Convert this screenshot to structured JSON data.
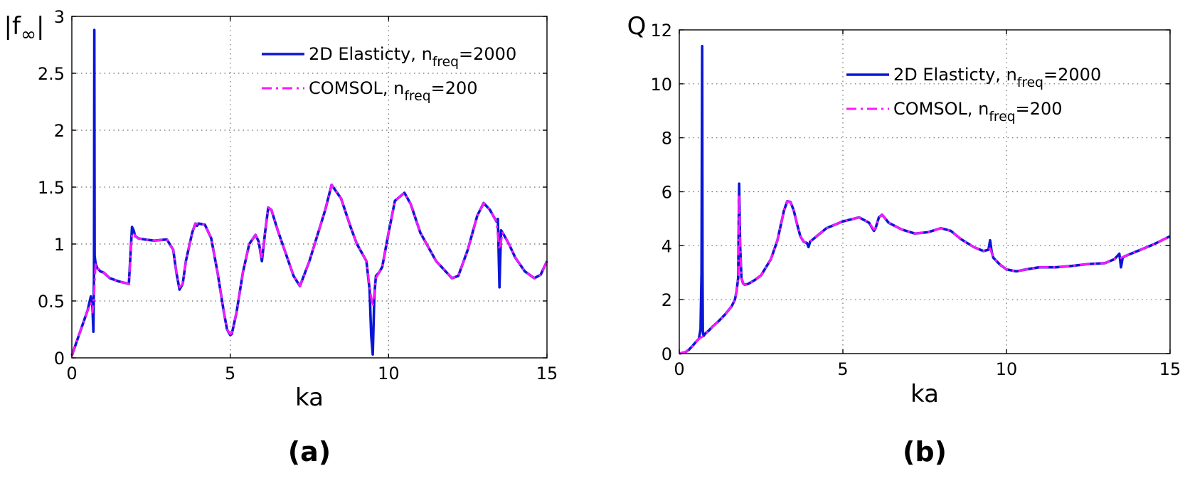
{
  "colors": {
    "series1": "#0a16d6",
    "series2": "#ff17ff",
    "axis": "#000000",
    "grid": "#6b6b6b"
  },
  "chart_data": [
    {
      "type": "line",
      "caption": "(a)",
      "ylabel_base": "|f",
      "ylabel_sub": "∞",
      "ylabel_end": "|",
      "xlabel": "ka",
      "xlim": [
        0,
        15
      ],
      "ylim": [
        0,
        3
      ],
      "xticks": [
        0,
        5,
        10,
        15
      ],
      "yticks": [
        0,
        0.5,
        1,
        1.5,
        2,
        2.5,
        3
      ],
      "xtick_labels": [
        "0",
        "5",
        "10",
        "15"
      ],
      "ytick_labels": [
        "0",
        "0.5",
        "1",
        "1.5",
        "2",
        "2.5",
        "3"
      ],
      "grid": true,
      "legend_position": "top-right",
      "series": [
        {
          "name": "2D Elasticty, n_freq=2000",
          "legend_base": "2D Elasticty, n",
          "legend_sub": "freq",
          "legend_end": "=2000",
          "style": "solid",
          "x": [
            0,
            0.1,
            0.2,
            0.3,
            0.4,
            0.5,
            0.55,
            0.6,
            0.65,
            0.68,
            0.7,
            0.71,
            0.72,
            0.74,
            0.76,
            0.8,
            0.9,
            1.0,
            1.2,
            1.5,
            1.8,
            1.85,
            1.9,
            1.95,
            2.0,
            2.1,
            2.3,
            2.6,
            3.0,
            3.2,
            3.3,
            3.4,
            3.5,
            3.6,
            3.8,
            3.9,
            3.95,
            4.0,
            4.2,
            4.4,
            4.6,
            4.8,
            4.9,
            5.0,
            5.05,
            5.2,
            5.4,
            5.6,
            5.8,
            5.9,
            6.0,
            6.1,
            6.2,
            6.3,
            6.5,
            7.0,
            7.2,
            7.5,
            8.0,
            8.2,
            8.5,
            8.8,
            9.0,
            9.2,
            9.3,
            9.4,
            9.45,
            9.5,
            9.55,
            9.6,
            9.7,
            9.8,
            10.0,
            10.2,
            10.5,
            10.7,
            11.0,
            11.5,
            12.0,
            12.2,
            12.5,
            12.8,
            13.0,
            13.2,
            13.4,
            13.45,
            13.5,
            13.55,
            13.6,
            13.8,
            14.0,
            14.3,
            14.6,
            14.8,
            15.0
          ],
          "y": [
            0.02,
            0.1,
            0.18,
            0.26,
            0.34,
            0.42,
            0.48,
            0.54,
            0.45,
            0.23,
            0.75,
            2.88,
            0.9,
            0.85,
            0.82,
            0.79,
            0.76,
            0.75,
            0.7,
            0.67,
            0.65,
            0.9,
            1.15,
            1.12,
            1.07,
            1.05,
            1.04,
            1.03,
            1.04,
            0.95,
            0.75,
            0.6,
            0.65,
            0.85,
            1.1,
            1.18,
            1.16,
            1.18,
            1.17,
            1.05,
            0.75,
            0.4,
            0.25,
            0.2,
            0.21,
            0.4,
            0.75,
            1.0,
            1.08,
            1.02,
            0.85,
            1.1,
            1.32,
            1.3,
            1.12,
            0.72,
            0.63,
            0.85,
            1.3,
            1.52,
            1.4,
            1.15,
            1.0,
            0.9,
            0.85,
            0.6,
            0.2,
            0.03,
            0.55,
            0.72,
            0.75,
            0.8,
            1.1,
            1.38,
            1.45,
            1.35,
            1.1,
            0.85,
            0.7,
            0.72,
            0.95,
            1.25,
            1.36,
            1.3,
            1.2,
            1.22,
            0.62,
            1.12,
            1.1,
            1.0,
            0.88,
            0.76,
            0.7,
            0.73,
            0.85
          ]
        },
        {
          "name": "COMSOL, n_freq=200",
          "legend_base": "COMSOL, n",
          "legend_sub": "freq",
          "legend_end": "=200",
          "style": "dashdot",
          "x": [
            0,
            0.1,
            0.2,
            0.3,
            0.4,
            0.5,
            0.6,
            0.65,
            0.7,
            0.75,
            0.8,
            0.9,
            1.0,
            1.2,
            1.5,
            1.8,
            1.85,
            1.9,
            1.95,
            2.0,
            2.1,
            2.3,
            2.6,
            3.0,
            3.2,
            3.3,
            3.4,
            3.5,
            3.6,
            3.8,
            3.9,
            4.0,
            4.2,
            4.4,
            4.6,
            4.8,
            4.9,
            5.0,
            5.05,
            5.2,
            5.4,
            5.6,
            5.8,
            5.9,
            6.0,
            6.1,
            6.2,
            6.3,
            6.5,
            7.0,
            7.2,
            7.5,
            8.0,
            8.2,
            8.5,
            8.8,
            9.0,
            9.2,
            9.3,
            9.4,
            9.5,
            9.6,
            9.7,
            9.8,
            10.0,
            10.2,
            10.5,
            10.7,
            11.0,
            11.5,
            12.0,
            12.2,
            12.5,
            12.8,
            13.0,
            13.2,
            13.4,
            13.5,
            13.6,
            13.8,
            14.0,
            14.3,
            14.6,
            14.8,
            15.0
          ],
          "y": [
            0.02,
            0.1,
            0.18,
            0.26,
            0.34,
            0.42,
            0.48,
            0.4,
            0.55,
            0.82,
            0.79,
            0.76,
            0.75,
            0.7,
            0.67,
            0.65,
            0.88,
            1.08,
            1.1,
            1.07,
            1.05,
            1.04,
            1.03,
            1.04,
            0.95,
            0.75,
            0.62,
            0.65,
            0.85,
            1.1,
            1.18,
            1.18,
            1.17,
            1.05,
            0.75,
            0.4,
            0.25,
            0.21,
            0.22,
            0.4,
            0.75,
            1.0,
            1.08,
            1.02,
            0.87,
            1.1,
            1.32,
            1.3,
            1.12,
            0.72,
            0.63,
            0.85,
            1.3,
            1.52,
            1.4,
            1.15,
            1.0,
            0.9,
            0.85,
            0.62,
            0.45,
            0.7,
            0.75,
            0.8,
            1.1,
            1.38,
            1.45,
            1.35,
            1.1,
            0.85,
            0.7,
            0.72,
            0.95,
            1.25,
            1.36,
            1.3,
            1.2,
            0.95,
            1.1,
            1.0,
            0.88,
            0.76,
            0.7,
            0.73,
            0.85
          ]
        }
      ]
    },
    {
      "type": "line",
      "caption": "(b)",
      "ylabel_base": "Q",
      "ylabel_sub": "",
      "ylabel_end": "",
      "xlabel": "ka",
      "xlim": [
        0,
        15
      ],
      "ylim": [
        0,
        12
      ],
      "xticks": [
        0,
        5,
        10,
        15
      ],
      "yticks": [
        0,
        2,
        4,
        6,
        8,
        10,
        12
      ],
      "xtick_labels": [
        "0",
        "5",
        "10",
        "15"
      ],
      "ytick_labels": [
        "0",
        "2",
        "4",
        "6",
        "8",
        "10",
        "12"
      ],
      "grid": true,
      "legend_position": "top-right",
      "series": [
        {
          "name": "2D Elasticty, n_freq=2000",
          "legend_base": "2D Elasticty, n",
          "legend_sub": "freq",
          "legend_end": "=2000",
          "style": "solid",
          "x": [
            0,
            0.1,
            0.2,
            0.3,
            0.4,
            0.5,
            0.6,
            0.65,
            0.68,
            0.7,
            0.71,
            0.72,
            0.74,
            0.8,
            0.9,
            1.0,
            1.2,
            1.4,
            1.6,
            1.7,
            1.75,
            1.8,
            1.83,
            1.86,
            1.9,
            1.95,
            2.0,
            2.1,
            2.3,
            2.5,
            2.8,
            3.0,
            3.2,
            3.3,
            3.4,
            3.5,
            3.6,
            3.7,
            3.8,
            3.9,
            3.95,
            4.0,
            4.2,
            4.5,
            5.0,
            5.5,
            5.8,
            5.95,
            6.0,
            6.1,
            6.2,
            6.4,
            6.8,
            7.2,
            7.6,
            8.0,
            8.3,
            8.6,
            9.0,
            9.3,
            9.45,
            9.5,
            9.55,
            9.6,
            9.8,
            10.0,
            10.3,
            10.6,
            11.0,
            11.5,
            12.0,
            12.5,
            13.0,
            13.3,
            13.45,
            13.5,
            13.55,
            13.6,
            14.0,
            14.5,
            15.0
          ],
          "y": [
            0,
            0.03,
            0.06,
            0.15,
            0.28,
            0.42,
            0.55,
            0.9,
            3.0,
            11.4,
            3.0,
            0.8,
            0.65,
            0.75,
            0.85,
            0.98,
            1.2,
            1.45,
            1.75,
            2.0,
            2.3,
            2.8,
            6.3,
            4.0,
            2.8,
            2.6,
            2.55,
            2.58,
            2.72,
            2.9,
            3.5,
            4.2,
            5.3,
            5.65,
            5.62,
            5.3,
            4.8,
            4.35,
            4.15,
            4.1,
            3.95,
            4.15,
            4.35,
            4.65,
            4.9,
            5.05,
            4.85,
            4.55,
            4.65,
            5.05,
            5.15,
            4.85,
            4.6,
            4.45,
            4.5,
            4.65,
            4.55,
            4.25,
            3.95,
            3.8,
            3.85,
            4.2,
            3.75,
            3.55,
            3.3,
            3.12,
            3.05,
            3.12,
            3.2,
            3.2,
            3.25,
            3.32,
            3.35,
            3.5,
            3.7,
            3.2,
            3.55,
            3.6,
            3.8,
            4.05,
            4.35
          ]
        },
        {
          "name": "COMSOL, n_freq=200",
          "legend_base": "COMSOL, n",
          "legend_sub": "freq",
          "legend_end": "=200",
          "style": "dashdot",
          "x": [
            0,
            0.1,
            0.2,
            0.3,
            0.4,
            0.5,
            0.6,
            0.7,
            0.8,
            0.9,
            1.0,
            1.2,
            1.4,
            1.6,
            1.7,
            1.75,
            1.8,
            1.83,
            1.86,
            1.9,
            1.95,
            2.0,
            2.1,
            2.3,
            2.5,
            2.8,
            3.0,
            3.2,
            3.3,
            3.4,
            3.5,
            3.6,
            3.7,
            3.8,
            3.9,
            4.0,
            4.2,
            4.5,
            5.0,
            5.5,
            5.8,
            5.95,
            6.0,
            6.1,
            6.2,
            6.4,
            6.8,
            7.2,
            7.6,
            8.0,
            8.3,
            8.6,
            9.0,
            9.3,
            9.5,
            9.6,
            9.8,
            10.0,
            10.3,
            10.6,
            11.0,
            11.5,
            12.0,
            12.5,
            13.0,
            13.3,
            13.5,
            13.6,
            14.0,
            14.5,
            15.0
          ],
          "y": [
            0,
            0.03,
            0.06,
            0.15,
            0.28,
            0.42,
            0.55,
            0.62,
            0.75,
            0.85,
            0.98,
            1.2,
            1.45,
            1.75,
            2.0,
            2.3,
            2.8,
            5.9,
            4.0,
            2.8,
            2.6,
            2.55,
            2.58,
            2.72,
            2.9,
            3.5,
            4.2,
            5.3,
            5.65,
            5.62,
            5.3,
            4.8,
            4.35,
            4.15,
            4.12,
            4.15,
            4.35,
            4.65,
            4.9,
            5.05,
            4.85,
            4.6,
            4.65,
            5.05,
            5.15,
            4.85,
            4.6,
            4.45,
            4.5,
            4.65,
            4.55,
            4.25,
            3.95,
            3.8,
            3.9,
            3.55,
            3.3,
            3.12,
            3.05,
            3.12,
            3.2,
            3.2,
            3.25,
            3.32,
            3.35,
            3.5,
            3.55,
            3.6,
            3.8,
            4.05,
            4.35
          ]
        }
      ]
    }
  ]
}
